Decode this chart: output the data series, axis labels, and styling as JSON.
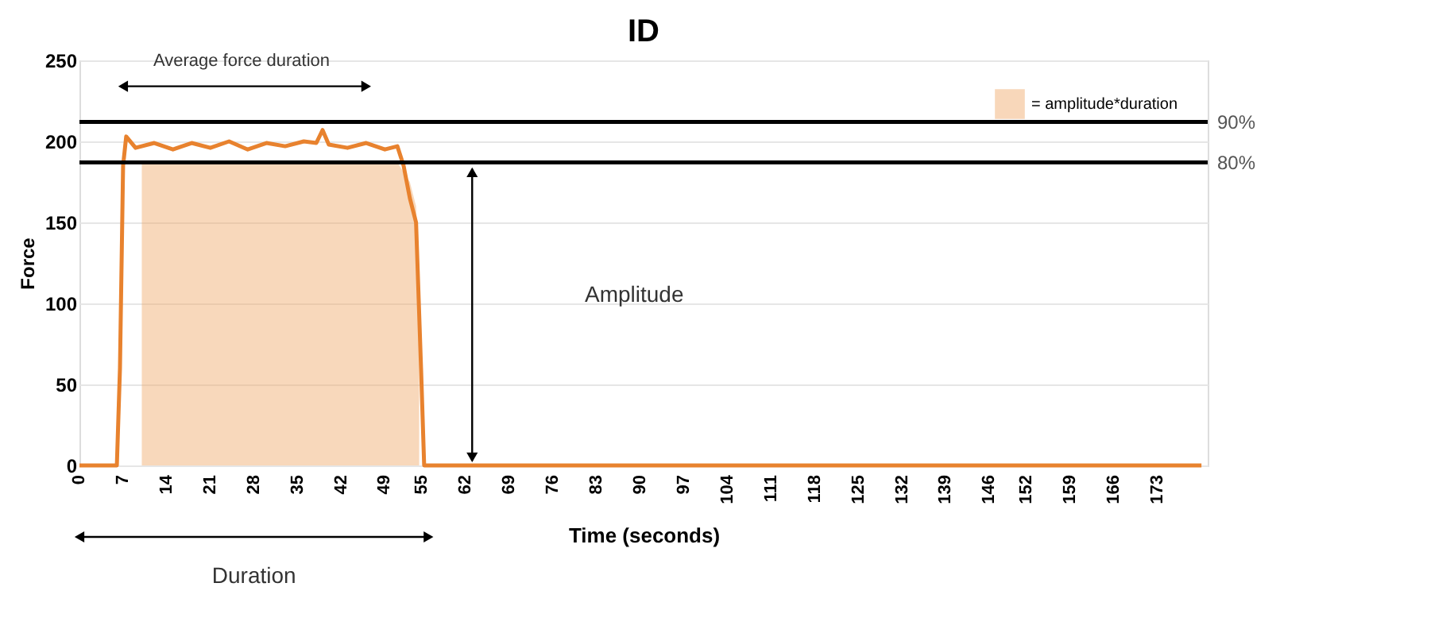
{
  "chart_data": {
    "type": "line",
    "title": "ID",
    "xlabel": "Time (seconds)",
    "ylabel": "Force",
    "xlim": [
      0,
      181
    ],
    "ylim": [
      0,
      250
    ],
    "yticks": [
      0,
      50,
      100,
      150,
      200,
      250
    ],
    "xticks": [
      0,
      7,
      14,
      21,
      28,
      35,
      42,
      49,
      55,
      62,
      69,
      76,
      83,
      90,
      97,
      104,
      111,
      118,
      125,
      132,
      139,
      146,
      152,
      159,
      166,
      173
    ],
    "series": [
      {
        "type": "area",
        "name": "= amplitude*duration",
        "color": "#f0a868",
        "x": [
          10,
          51,
          53,
          54,
          54.5
        ],
        "values": [
          187,
          187,
          175,
          160,
          120
        ]
      },
      {
        "color": "#e8822e",
        "x": [
          0,
          6,
          6.5,
          7,
          7.5,
          9,
          12,
          15,
          18,
          21,
          24,
          27,
          30,
          33,
          36,
          38,
          39,
          40,
          43,
          46,
          49,
          51,
          52,
          53,
          54,
          54.8,
          55.3,
          180
        ],
        "values": [
          0,
          0,
          60,
          185,
          203,
          196,
          199,
          195,
          199,
          196,
          200,
          195,
          199,
          197,
          200,
          199,
          207,
          198,
          196,
          199,
          195,
          197,
          185,
          165,
          150,
          60,
          0,
          0
        ]
      }
    ],
    "ref_lines": [
      {
        "axis": "y",
        "value": 212,
        "color": "#000000"
      },
      {
        "axis": "y",
        "value": 187,
        "color": "#000000"
      }
    ],
    "annotations": [
      "Average force duration",
      "Amplitude",
      "Duration",
      "90%",
      "80%"
    ],
    "grid": "y",
    "legend": "top right"
  }
}
